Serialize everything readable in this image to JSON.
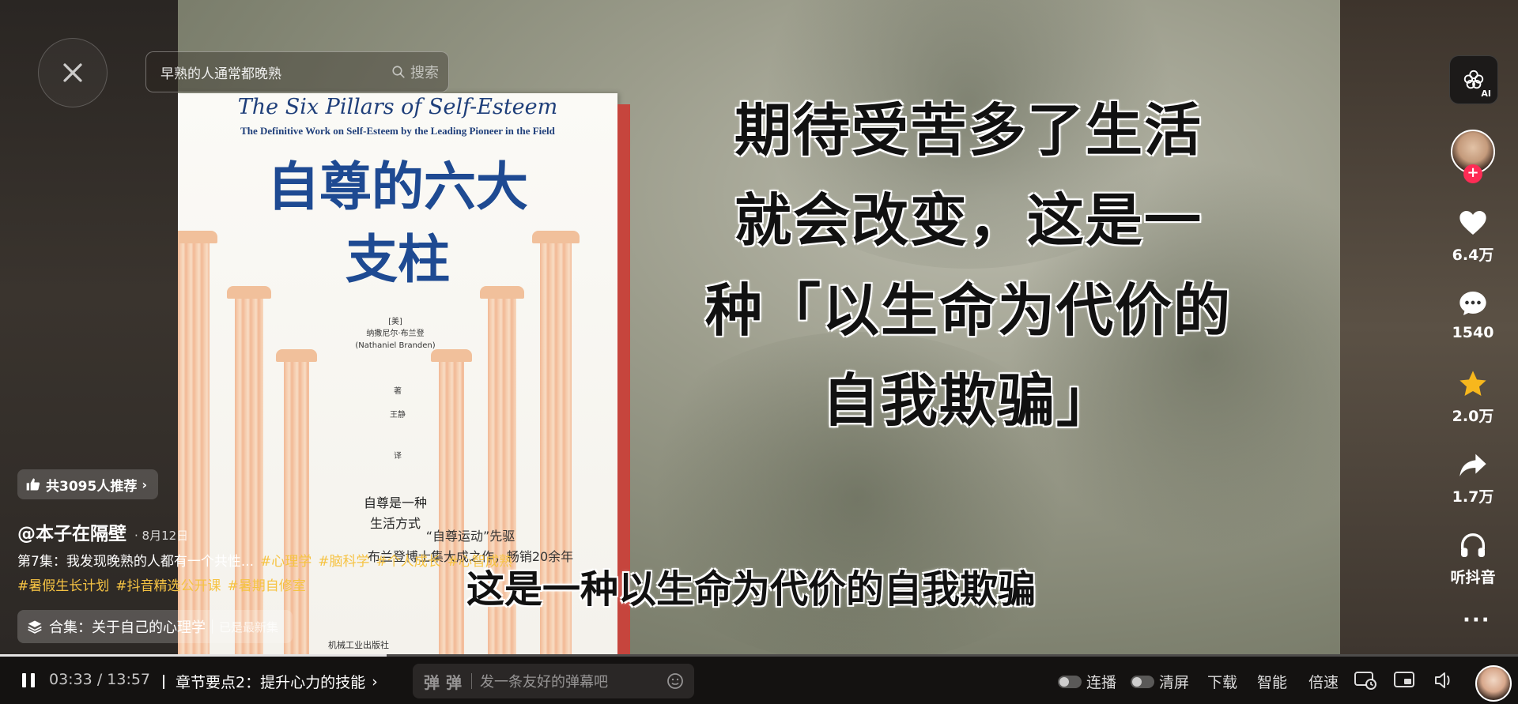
{
  "search": {
    "query": "早熟的人通常都晚熟",
    "button_label": "搜索"
  },
  "book": {
    "en_title": "The Six Pillars of Self-Esteem",
    "en_subtitle": "The Definitive Work on Self-Esteem by the Leading Pioneer in the Field",
    "cn_title_line1": "自尊的六大",
    "cn_title_line2": "支柱",
    "author_country": "[美]",
    "author_cn": "纳撒尼尔·布兰登",
    "author_en": "(Nathaniel Branden)",
    "author_role": "著",
    "translator": "王静",
    "translator_role": "译",
    "tagline_line1": "自尊是一种",
    "tagline_line2": "生活方式",
    "desc_line1": "“自尊运动”先驱",
    "desc_line2": "布兰登博士集大成之作，畅销20余年",
    "publisher": "机械工业出版社"
  },
  "quote": {
    "line1": "期待受苦多了生活",
    "line2": "就会改变，这是一",
    "line3": "种「以生命为代价的",
    "line4": "自我欺骗」"
  },
  "subtitle": "这是一种以生命为代价的自我欺骗",
  "sidebar": {
    "ai_label": "AI",
    "likes": "6.4万",
    "comments": "1540",
    "favorites": "2.0万",
    "shares": "1.7万",
    "listen_label": "听抖音",
    "like_color": "#ffffff",
    "favorite_color": "#f7b71d"
  },
  "info": {
    "recommend": "共3095人推荐",
    "author": "@本子在隔壁",
    "date": "8月12日",
    "description": "第7集：我发现晚熟的人都有一个共性...",
    "tags": [
      "#心理学",
      "#脑科学",
      "#个人成长",
      "#心智成熟",
      "#暑假生长计划",
      "#抖音精选公开课",
      "#暑期自修室"
    ],
    "collection_label": "合集：关于自己的心理学",
    "collection_status": "已是最新集",
    "tag_color": "#f6c343"
  },
  "player": {
    "current_time": "03:33",
    "separator": "/",
    "total_time": "13:57",
    "progress": 0.2545,
    "chapter": "章节要点2：提升心力的技能",
    "danmaku_icon1": "弹",
    "danmaku_icon2": "弹",
    "danmaku_placeholder": "发一条友好的弹幕吧",
    "autoplay_label": "连播",
    "clear_label": "清屏",
    "download_label": "下载",
    "smart_label": "智能",
    "speed_label": "倍速"
  }
}
